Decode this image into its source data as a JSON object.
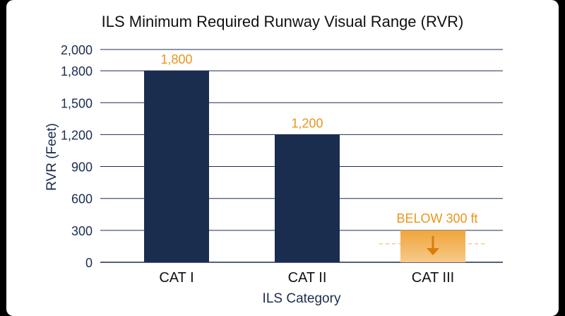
{
  "colors": {
    "navy": "#1b2d4f",
    "orange": "#e8961c",
    "orange_light": "#f6c27a",
    "grid": "#1b2d4f",
    "text": "#1b2d4f"
  },
  "chart_data": {
    "type": "bar",
    "title": "ILS Minimum Required Runway Visual Range (RVR)",
    "xlabel": "ILS Category",
    "ylabel": "RVR (Feet)",
    "ylim": [
      0,
      2000
    ],
    "grid": true,
    "y_ticks": [
      {
        "value": 0,
        "label": "0"
      },
      {
        "value": 300,
        "label": "300"
      },
      {
        "value": 600,
        "label": "600"
      },
      {
        "value": 900,
        "label": "900"
      },
      {
        "value": 1200,
        "label": "1,200"
      },
      {
        "value": 1500,
        "label": "1,500"
      },
      {
        "value": 1800,
        "label": "1,800"
      },
      {
        "value": 2000,
        "label": "2,000"
      }
    ],
    "categories": [
      "CAT I",
      "CAT II",
      "CAT III"
    ],
    "values": [
      1800,
      1200,
      300
    ],
    "data_labels": [
      "1,800",
      "1,200",
      "BELOW 300 ft"
    ],
    "annotation": {
      "category": "CAT III",
      "text": "BELOW 300 ft",
      "meaning": "value below 300"
    }
  }
}
